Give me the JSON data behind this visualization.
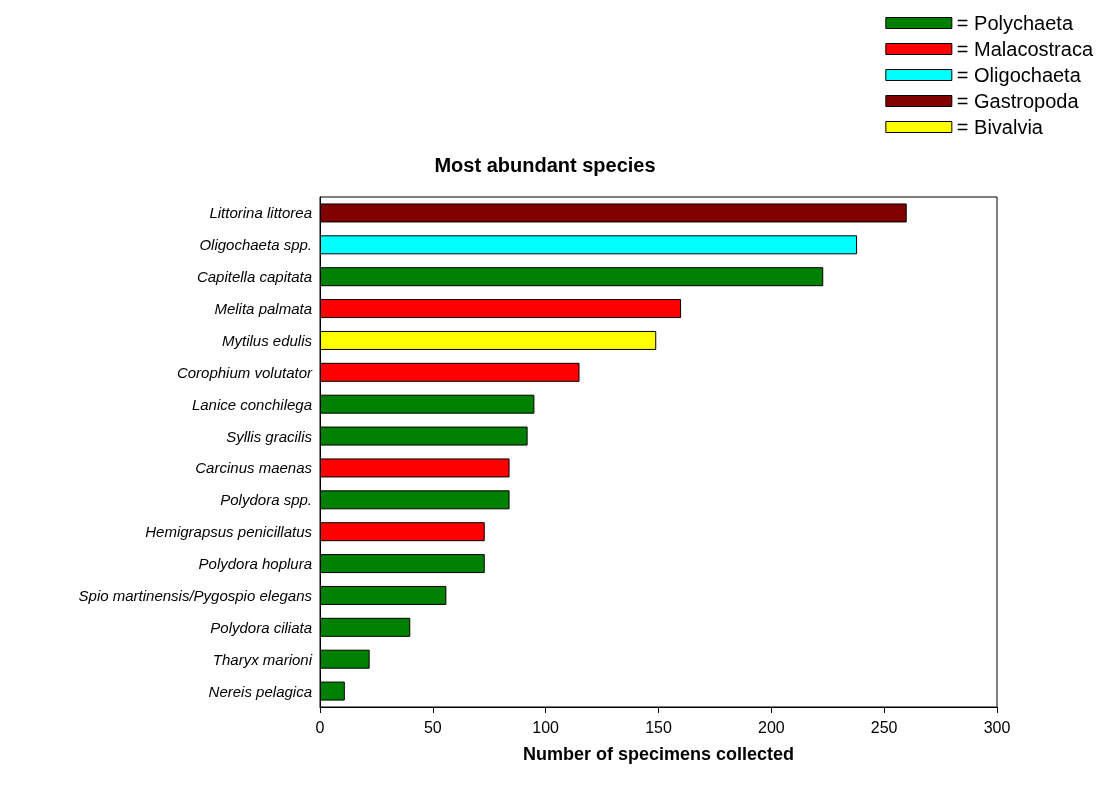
{
  "chart_data": {
    "type": "bar",
    "orientation": "horizontal",
    "stacked": true,
    "title": "Most abundant species",
    "xlabel": "Number of specimens collected",
    "categories": [
      "Littorina littorea",
      "Oligochaeta spp.",
      "Capitella capitata",
      "Melita palmata",
      "Mytilus edulis",
      "Corophium volutator",
      "Lanice conchilega",
      "Syllis gracilis",
      "Carcinus maenas",
      "Polydora spp.",
      "Hemigrapsus penicillatus",
      "Polydora hoplura",
      "Spio martinensis/Pygospio elegans",
      "Polydora ciliata",
      "Tharyx marioni",
      "Nereis pelagica"
    ],
    "series": [
      {
        "name": "= Polychaeta",
        "color": "#008000",
        "values": [
          null,
          null,
          223,
          null,
          null,
          null,
          95,
          92,
          null,
          84,
          null,
          73,
          56,
          40,
          22,
          11
        ]
      },
      {
        "name": "= Malacostraca",
        "color": "#ff0000",
        "values": [
          null,
          null,
          null,
          160,
          null,
          115,
          null,
          null,
          84,
          null,
          73,
          null,
          null,
          null,
          null,
          null
        ]
      },
      {
        "name": "= Oligochaeta",
        "color": "#00ffff",
        "values": [
          null,
          238,
          null,
          null,
          null,
          null,
          null,
          null,
          null,
          null,
          null,
          null,
          null,
          null,
          null,
          null
        ]
      },
      {
        "name": "= Gastropoda",
        "color": "#800000",
        "values": [
          260,
          null,
          null,
          null,
          null,
          null,
          null,
          null,
          null,
          null,
          null,
          null,
          null,
          null,
          null,
          null
        ]
      },
      {
        "name": "= Bivalvia",
        "color": "#ffff00",
        "values": [
          null,
          null,
          null,
          null,
          149,
          null,
          null,
          null,
          null,
          null,
          null,
          null,
          null,
          null,
          null,
          null
        ]
      }
    ],
    "xlim": [
      0,
      300
    ],
    "xticks": [
      0,
      50,
      100,
      150,
      200,
      250,
      300
    ],
    "grid": false,
    "legend": "top right"
  }
}
